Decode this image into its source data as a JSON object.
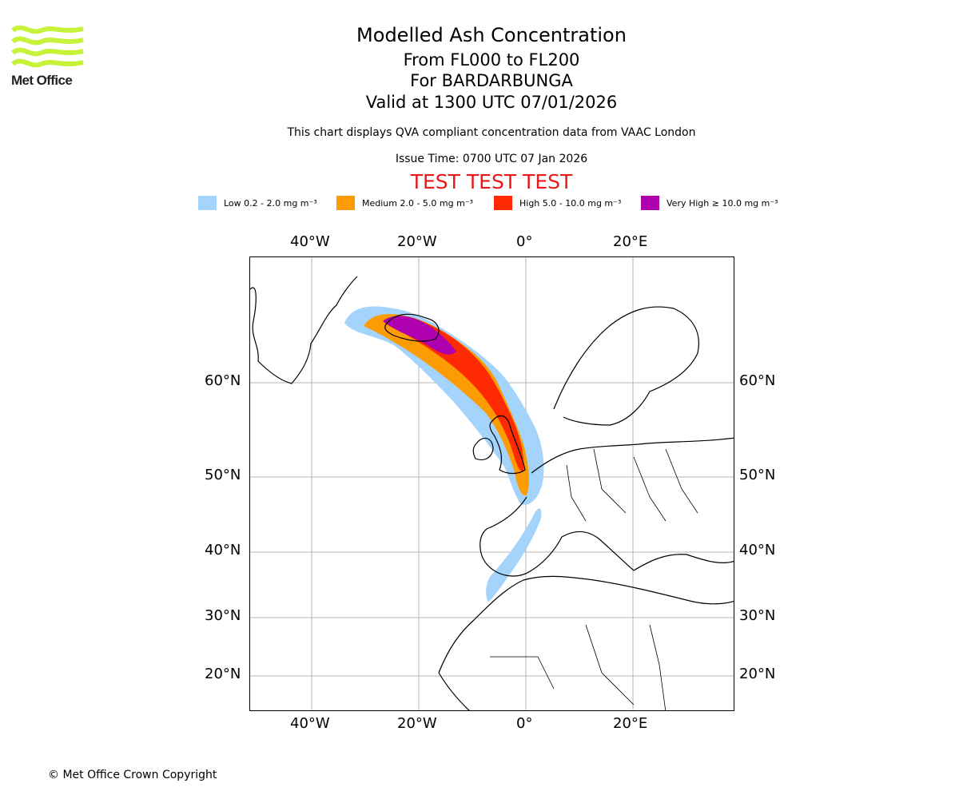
{
  "logo": {
    "text": "Met Office",
    "color": "#c6f33a"
  },
  "title": {
    "main": "Modelled Ash Concentration",
    "levels": "From FL000 to FL200",
    "volcano": "For BARDARBUNGA",
    "valid": "Valid at 1300 UTC 07/01/2026"
  },
  "description": "This chart displays QVA compliant concentration data from VAAC London",
  "issue_time": "Issue Time: 0700 UTC 07 Jan 2026",
  "test_banner": {
    "text": "TEST TEST TEST",
    "color": "#e8191b"
  },
  "legend": [
    {
      "label": "Low 0.2 - 2.0 mg m⁻³",
      "color": "#a4d3fb"
    },
    {
      "label": "Medium 2.0 - 5.0 mg m⁻³",
      "color": "#fd9b03"
    },
    {
      "label": "High 5.0 - 10.0 mg m⁻³",
      "color": "#fd2a02"
    },
    {
      "label": "Very High  ≥  10.0 mg m⁻³",
      "color": "#ae00ae"
    }
  ],
  "axes": {
    "longitude_labels": [
      "40°W",
      "20°W",
      "0°",
      "20°E"
    ],
    "latitude_labels": [
      "60°N",
      "50°N",
      "40°N",
      "30°N",
      "20°N"
    ]
  },
  "copyright": "© Met Office Crown Copyright"
}
